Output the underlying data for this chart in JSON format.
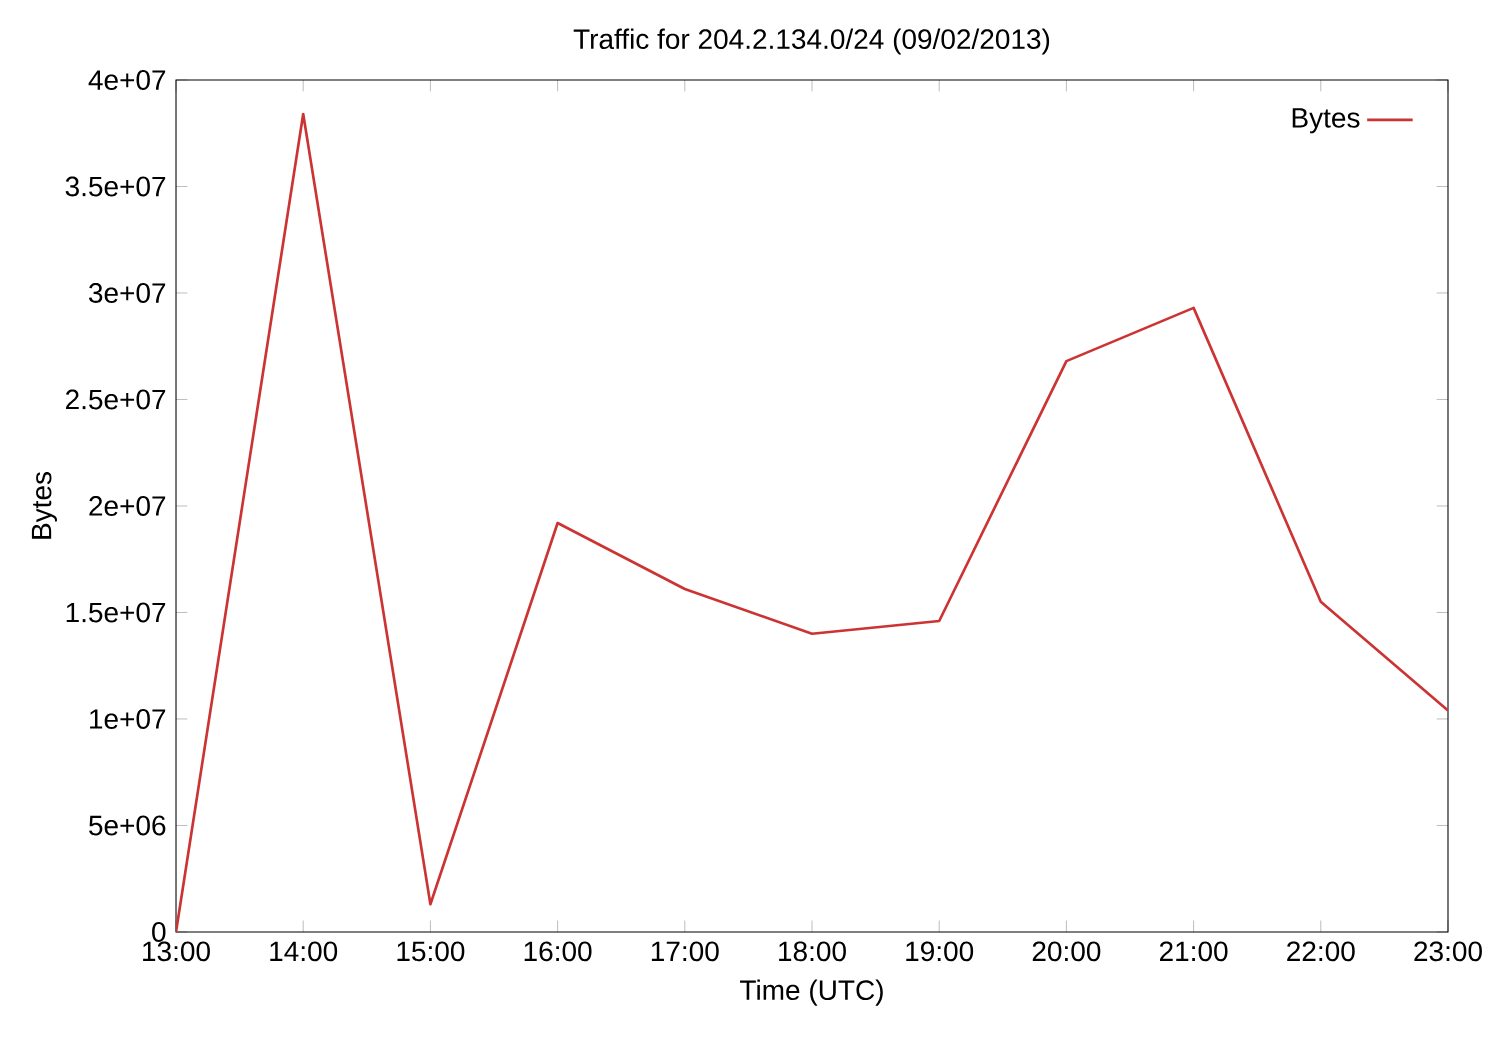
{
  "chart_data": {
    "type": "line",
    "title": "Traffic for 204.2.134.0/24 (09/02/2013)",
    "xlabel": "Time (UTC)",
    "ylabel": "Bytes",
    "x": [
      13,
      14,
      15,
      16,
      17,
      18,
      19,
      20,
      21,
      22,
      23
    ],
    "series": [
      {
        "name": "Bytes",
        "color": "#cc3333",
        "values": [
          0,
          38400000,
          1300000,
          19200000,
          16100000,
          14000000,
          14600000,
          26800000,
          29300000,
          15500000,
          10400000
        ]
      }
    ],
    "xlim": [
      13,
      23
    ],
    "xticks": [
      {
        "value": 13,
        "label": "13:00"
      },
      {
        "value": 14,
        "label": "14:00"
      },
      {
        "value": 15,
        "label": "15:00"
      },
      {
        "value": 16,
        "label": "16:00"
      },
      {
        "value": 17,
        "label": "17:00"
      },
      {
        "value": 18,
        "label": "18:00"
      },
      {
        "value": 19,
        "label": "19:00"
      },
      {
        "value": 20,
        "label": "20:00"
      },
      {
        "value": 21,
        "label": "21:00"
      },
      {
        "value": 22,
        "label": "22:00"
      },
      {
        "value": 23,
        "label": "23:00"
      }
    ],
    "ylim": [
      0,
      40000000
    ],
    "yticks": [
      {
        "value": 0,
        "label": "0"
      },
      {
        "value": 5000000,
        "label": "5e+06"
      },
      {
        "value": 10000000,
        "label": "1e+07"
      },
      {
        "value": 15000000,
        "label": "1.5e+07"
      },
      {
        "value": 20000000,
        "label": "2e+07"
      },
      {
        "value": 25000000,
        "label": "2.5e+07"
      },
      {
        "value": 30000000,
        "label": "3e+07"
      },
      {
        "value": 35000000,
        "label": "3.5e+07"
      },
      {
        "value": 40000000,
        "label": "4e+07"
      }
    ],
    "legend": "top right",
    "marker": "none",
    "line_style": "solid",
    "grid": false
  }
}
